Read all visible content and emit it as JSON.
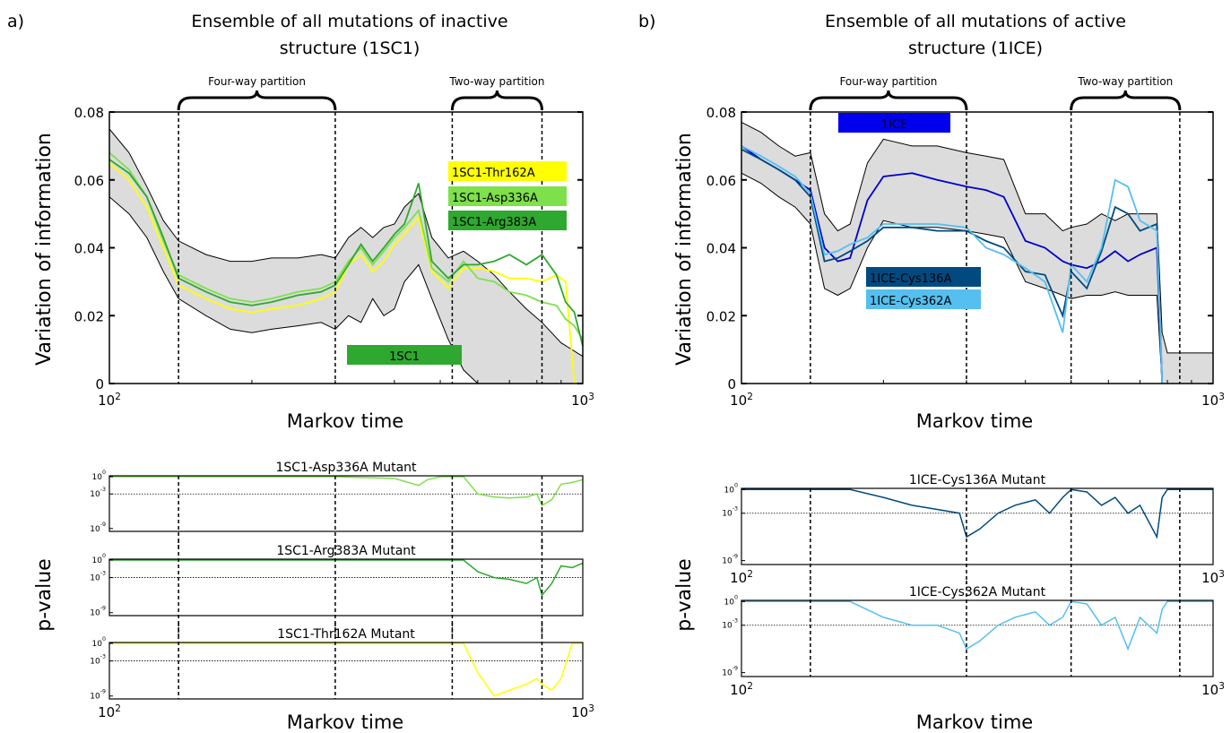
{
  "panels": [
    {
      "label": "a)",
      "title_lines": [
        "Ensemble of all mutations of inactive",
        "structure (1SC1)"
      ],
      "ylabel": "Variation of information",
      "xlabel": "Markov time",
      "pvalue_ylabel": "p-value",
      "bottom_xlabel": "Markov time",
      "braces": [
        {
          "label": "Four-way partition",
          "from": 140,
          "to": 300
        },
        {
          "label": "Two-way partition",
          "from": 530,
          "to": 820
        }
      ],
      "vlines": [
        140,
        300,
        530,
        820
      ]
    },
    {
      "label": "b)",
      "title_lines": [
        "Ensemble of all mutations of active",
        "structure (1ICE)"
      ],
      "ylabel": "Variation of information",
      "xlabel": "Markov time",
      "pvalue_ylabel": "p-value",
      "bottom_xlabel": "Markov time",
      "braces": [
        {
          "label": "Four-way partition",
          "from": 140,
          "to": 300
        },
        {
          "label": "Two-way partition",
          "from": 500,
          "to": 850
        }
      ],
      "vlines": [
        140,
        300,
        500,
        850
      ]
    }
  ],
  "chart_data": [
    {
      "type": "line",
      "title": "Ensemble of all mutations of inactive structure (1SC1)",
      "xlabel": "Markov time",
      "ylabel": "Variation of information",
      "xscale": "log",
      "xlim": [
        100,
        1000
      ],
      "ylim": [
        0,
        0.08
      ],
      "xticks": [
        "10^2",
        "10^3"
      ],
      "yticks": [
        "0",
        "0.02",
        "0.04",
        "0.06",
        "0.08"
      ],
      "band": {
        "name": "1SC1",
        "color": "#dcdcdc",
        "x": [
          100,
          110,
          120,
          130,
          140,
          160,
          180,
          200,
          220,
          250,
          280,
          300,
          320,
          340,
          360,
          380,
          400,
          420,
          450,
          480,
          520,
          560,
          600,
          650,
          700,
          760,
          820,
          900,
          1000
        ],
        "upper": [
          0.075,
          0.068,
          0.058,
          0.048,
          0.042,
          0.038,
          0.036,
          0.036,
          0.037,
          0.037,
          0.038,
          0.037,
          0.043,
          0.046,
          0.043,
          0.046,
          0.047,
          0.052,
          0.056,
          0.043,
          0.037,
          0.039,
          0.036,
          0.032,
          0.027,
          0.022,
          0.018,
          0.012,
          0.008
        ],
        "lower": [
          0.055,
          0.05,
          0.043,
          0.033,
          0.025,
          0.02,
          0.016,
          0.015,
          0.016,
          0.017,
          0.018,
          0.016,
          0.02,
          0.018,
          0.025,
          0.02,
          0.022,
          0.03,
          0.035,
          0.025,
          0.013,
          0.004,
          0.0,
          0.0,
          0.0,
          0.0,
          0.0,
          0.0,
          0.0
        ]
      },
      "series": [
        {
          "name": "1SC1-Thr162A",
          "color": "#ffff00",
          "x": [
            100,
            110,
            120,
            130,
            140,
            160,
            180,
            200,
            220,
            250,
            280,
            300,
            320,
            340,
            360,
            380,
            400,
            420,
            450,
            480,
            520,
            560,
            600,
            650,
            700,
            760,
            820,
            880,
            920,
            960,
            1000
          ],
          "y": [
            0.065,
            0.06,
            0.052,
            0.04,
            0.029,
            0.025,
            0.022,
            0.021,
            0.022,
            0.023,
            0.025,
            0.027,
            0.035,
            0.038,
            0.033,
            0.036,
            0.041,
            0.044,
            0.049,
            0.033,
            0.028,
            0.034,
            0.034,
            0.033,
            0.031,
            0.031,
            0.03,
            0.032,
            0.03,
            0.0,
            0.0
          ]
        },
        {
          "name": "1SC1-Asp336A",
          "color": "#7ee04a",
          "x": [
            100,
            110,
            120,
            130,
            140,
            160,
            180,
            200,
            220,
            250,
            280,
            300,
            320,
            340,
            360,
            380,
            400,
            420,
            450,
            480,
            520,
            560,
            600,
            650,
            700,
            760,
            820,
            880,
            920,
            960,
            1000
          ],
          "y": [
            0.068,
            0.063,
            0.055,
            0.042,
            0.032,
            0.028,
            0.025,
            0.024,
            0.025,
            0.027,
            0.028,
            0.03,
            0.036,
            0.04,
            0.035,
            0.039,
            0.043,
            0.046,
            0.051,
            0.034,
            0.03,
            0.036,
            0.031,
            0.03,
            0.027,
            0.026,
            0.024,
            0.023,
            0.019,
            0.017,
            0.013
          ]
        },
        {
          "name": "1SC1-Arg383A",
          "color": "#2ea82e",
          "x": [
            100,
            110,
            120,
            130,
            140,
            160,
            180,
            200,
            220,
            250,
            280,
            300,
            320,
            340,
            360,
            380,
            400,
            420,
            450,
            480,
            520,
            560,
            600,
            650,
            700,
            760,
            820,
            880,
            920,
            960,
            1000
          ],
          "y": [
            0.066,
            0.062,
            0.055,
            0.043,
            0.031,
            0.027,
            0.024,
            0.023,
            0.024,
            0.026,
            0.027,
            0.029,
            0.035,
            0.041,
            0.036,
            0.04,
            0.044,
            0.047,
            0.059,
            0.036,
            0.031,
            0.035,
            0.035,
            0.036,
            0.038,
            0.035,
            0.038,
            0.032,
            0.024,
            0.021,
            0.011
          ]
        }
      ],
      "legend": [
        {
          "text": "1SC1-Thr162A",
          "color": "#ffff00"
        },
        {
          "text": "1SC1-Asp336A",
          "color": "#7ee04a"
        },
        {
          "text": "1SC1-Arg383A",
          "color": "#2ea82e"
        }
      ],
      "band_label": {
        "text": "1SC1",
        "color": "#2ea82e"
      }
    },
    {
      "type": "line",
      "title": "Ensemble of all mutations of active structure (1ICE)",
      "xlabel": "Markov time",
      "ylabel": "Variation of information",
      "xscale": "log",
      "xlim": [
        100,
        1000
      ],
      "ylim": [
        0,
        0.08
      ],
      "xticks": [
        "10^2",
        "10^3"
      ],
      "yticks": [
        "0",
        "0.02",
        "0.04",
        "0.06",
        "0.08"
      ],
      "band": {
        "name": "1ICE",
        "color": "#dcdcdc",
        "x": [
          100,
          110,
          120,
          130,
          140,
          150,
          160,
          170,
          185,
          200,
          230,
          260,
          300,
          330,
          360,
          400,
          440,
          480,
          500,
          540,
          580,
          620,
          660,
          700,
          760,
          780,
          800,
          900,
          1000
        ],
        "upper": [
          0.077,
          0.074,
          0.07,
          0.067,
          0.068,
          0.05,
          0.045,
          0.047,
          0.065,
          0.072,
          0.07,
          0.07,
          0.068,
          0.067,
          0.066,
          0.05,
          0.05,
          0.045,
          0.046,
          0.047,
          0.05,
          0.048,
          0.05,
          0.05,
          0.05,
          0.015,
          0.009,
          0.009,
          0.009
        ],
        "lower": [
          0.062,
          0.059,
          0.055,
          0.052,
          0.047,
          0.028,
          0.026,
          0.028,
          0.04,
          0.048,
          0.046,
          0.046,
          0.045,
          0.044,
          0.043,
          0.03,
          0.028,
          0.026,
          0.025,
          0.026,
          0.026,
          0.027,
          0.026,
          0.026,
          0.026,
          0.0,
          0.0,
          0.0,
          0.0
        ]
      },
      "series": [
        {
          "name": "1ICE",
          "color": "#0000cc",
          "x": [
            100,
            110,
            120,
            130,
            140,
            150,
            160,
            170,
            185,
            200,
            230,
            260,
            300,
            330,
            360,
            400,
            440,
            480,
            500,
            540,
            580,
            620,
            660,
            700,
            760,
            780
          ],
          "y": [
            0.07,
            0.066,
            0.063,
            0.06,
            0.057,
            0.04,
            0.036,
            0.037,
            0.054,
            0.061,
            0.062,
            0.06,
            0.058,
            0.057,
            0.055,
            0.042,
            0.04,
            0.036,
            0.035,
            0.034,
            0.036,
            0.039,
            0.036,
            0.038,
            0.04,
            0.0
          ]
        },
        {
          "name": "1ICE-Cys136A",
          "color": "#004a80",
          "x": [
            100,
            110,
            120,
            130,
            140,
            150,
            160,
            170,
            185,
            200,
            230,
            260,
            300,
            330,
            360,
            400,
            440,
            480,
            500,
            540,
            580,
            620,
            660,
            700,
            760,
            780
          ],
          "y": [
            0.069,
            0.066,
            0.063,
            0.06,
            0.055,
            0.036,
            0.037,
            0.039,
            0.042,
            0.046,
            0.046,
            0.045,
            0.045,
            0.042,
            0.04,
            0.033,
            0.032,
            0.02,
            0.033,
            0.028,
            0.039,
            0.052,
            0.05,
            0.045,
            0.047,
            0.0
          ]
        },
        {
          "name": "1ICE-Cys362A",
          "color": "#55bff0",
          "x": [
            100,
            110,
            120,
            130,
            140,
            150,
            160,
            170,
            185,
            200,
            230,
            260,
            300,
            330,
            360,
            400,
            440,
            480,
            500,
            540,
            580,
            620,
            660,
            700,
            760,
            780
          ],
          "y": [
            0.07,
            0.067,
            0.064,
            0.061,
            0.056,
            0.038,
            0.039,
            0.041,
            0.043,
            0.047,
            0.047,
            0.047,
            0.046,
            0.04,
            0.038,
            0.034,
            0.03,
            0.015,
            0.035,
            0.03,
            0.04,
            0.06,
            0.058,
            0.048,
            0.045,
            0.0
          ]
        }
      ],
      "legend": [
        {
          "text": "1ICE-Cys136A",
          "color": "#004a80"
        },
        {
          "text": "1ICE-Cys362A",
          "color": "#55bff0"
        }
      ],
      "band_label": {
        "text": "1ICE",
        "color": "#0000ee"
      }
    },
    {
      "type": "line",
      "title": "1SC1-Asp336A Mutant",
      "ylabel": "p-value",
      "xscale": "log",
      "yscale": "log",
      "xlim": [
        100,
        1000
      ],
      "yticks": [
        "10^0",
        "10^-3",
        "10^-9"
      ],
      "threshold": 0.001,
      "series": [
        {
          "color": "#7ee04a",
          "x": [
            100,
            150,
            200,
            300,
            400,
            450,
            470,
            500,
            560,
            600,
            650,
            700,
            760,
            800,
            820,
            860,
            900,
            950,
            1000
          ],
          "y": [
            1,
            1,
            1,
            1,
            0.5,
            0.03,
            0.3,
            1,
            1,
            0.001,
            0.0003,
            0.0002,
            0.0003,
            0.001,
            1e-05,
            0.0001,
            0.05,
            0.1,
            0.3
          ]
        }
      ]
    },
    {
      "type": "line",
      "title": "1SC1-Arg383A Mutant",
      "ylabel": "p-value",
      "xscale": "log",
      "yscale": "log",
      "xlim": [
        100,
        1000
      ],
      "yticks": [
        "10^0",
        "10^-3",
        "10^-9"
      ],
      "threshold": 0.001,
      "series": [
        {
          "color": "#2ea82e",
          "x": [
            100,
            150,
            200,
            300,
            400,
            500,
            560,
            600,
            650,
            700,
            760,
            800,
            820,
            860,
            900,
            950,
            1000
          ],
          "y": [
            1,
            1,
            1,
            1,
            1,
            1,
            1,
            0.01,
            0.001,
            0.0005,
            0.0001,
            0.001,
            1e-06,
            0.0001,
            0.1,
            0.05,
            0.3
          ]
        }
      ]
    },
    {
      "type": "line",
      "title": "1SC1-Thr162A Mutant",
      "ylabel": "p-value",
      "xscale": "log",
      "yscale": "log",
      "xlim": [
        100,
        1000
      ],
      "yticks": [
        "10^0",
        "10^-3",
        "10^-9"
      ],
      "threshold": 0.001,
      "series": [
        {
          "color": "#ffff00",
          "x": [
            100,
            150,
            200,
            300,
            400,
            500,
            560,
            600,
            650,
            700,
            760,
            800,
            820,
            860,
            900,
            950,
            1000
          ],
          "y": [
            1,
            1,
            1,
            1,
            1,
            1,
            1,
            1e-05,
            1e-09,
            1e-08,
            1e-07,
            1e-06,
            1e-07,
            1e-08,
            1e-06,
            1,
            1
          ]
        }
      ]
    },
    {
      "type": "line",
      "title": "1ICE-Cys136A Mutant",
      "ylabel": "p-value",
      "xscale": "log",
      "yscale": "log",
      "xlim": [
        100,
        1000
      ],
      "xticks": [
        "10^2",
        "10^3"
      ],
      "yticks": [
        "10^0",
        "10^-3",
        "10^-9"
      ],
      "threshold": 0.001,
      "series": [
        {
          "color": "#004a80",
          "x": [
            100,
            140,
            170,
            200,
            230,
            260,
            290,
            300,
            320,
            350,
            380,
            420,
            450,
            480,
            500,
            540,
            580,
            620,
            660,
            700,
            760,
            780,
            800,
            850,
            1000
          ],
          "y": [
            1,
            1,
            1,
            0.1,
            0.01,
            0.003,
            0.001,
            1e-06,
            1e-05,
            0.001,
            0.01,
            0.05,
            0.001,
            0.1,
            1,
            0.5,
            0.01,
            0.1,
            0.001,
            0.01,
            1e-06,
            0.1,
            1,
            1,
            1
          ]
        }
      ]
    },
    {
      "type": "line",
      "title": "1ICE-Cys362A Mutant",
      "ylabel": "p-value",
      "xscale": "log",
      "yscale": "log",
      "xlim": [
        100,
        1000
      ],
      "xticks": [
        "10^2",
        "10^3"
      ],
      "yticks": [
        "10^0",
        "10^-3",
        "10^-9"
      ],
      "threshold": 0.001,
      "series": [
        {
          "color": "#55bff0",
          "x": [
            100,
            140,
            170,
            200,
            230,
            260,
            290,
            300,
            320,
            350,
            380,
            420,
            450,
            480,
            500,
            540,
            580,
            620,
            660,
            700,
            760,
            780,
            800,
            850,
            1000
          ],
          "y": [
            1,
            1,
            1,
            0.01,
            0.001,
            0.001,
            0.0001,
            1e-06,
            1e-05,
            0.001,
            0.01,
            0.05,
            0.001,
            0.01,
            1,
            0.5,
            0.001,
            0.01,
            1e-06,
            0.01,
            0.0001,
            0.1,
            1,
            1,
            1
          ]
        }
      ]
    }
  ]
}
